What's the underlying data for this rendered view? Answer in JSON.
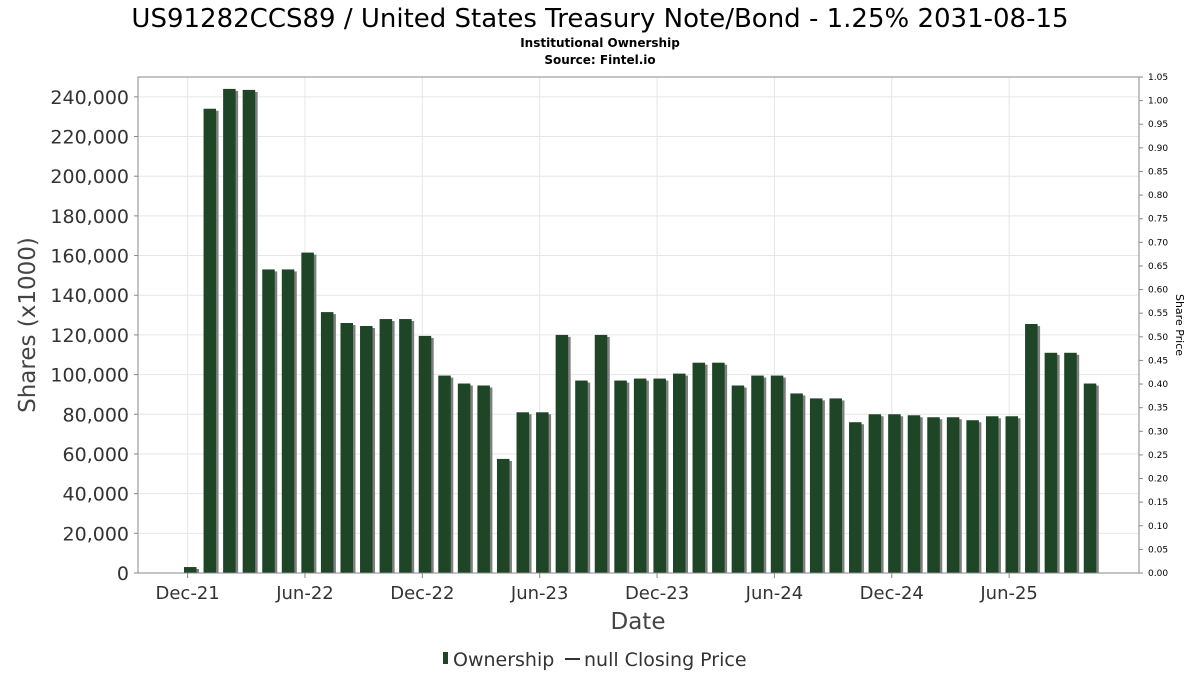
{
  "page": {
    "title": "US91282CCS89 / United States Treasury Note/Bond - 1.25% 2031-08-15",
    "subtitle1": "Institutional Ownership",
    "subtitle2": "Source: Fintel.io"
  },
  "colors": {
    "bar": "#1d4526",
    "bar_shadow": "#7f7f7f",
    "grid": "#e6e6e6",
    "plot_border": "#888888"
  },
  "chart_data": {
    "type": "bar",
    "xlabel": "Date",
    "ylabel": "Shares (x1000)",
    "y2label": "Share Price",
    "ylim": [
      0,
      250000
    ],
    "y2lim": [
      0,
      1.05
    ],
    "grid": true,
    "legend_position": "bottom",
    "x_tick_labels": [
      "Dec-21",
      "Jun-22",
      "Dec-22",
      "Jun-23",
      "Dec-23",
      "Jun-24",
      "Dec-24",
      "Jun-25"
    ],
    "y_tick_labels": [
      "0",
      "20,000",
      "40,000",
      "60,000",
      "80,000",
      "100,000",
      "120,000",
      "140,000",
      "160,000",
      "180,000",
      "200,000",
      "220,000",
      "240,000"
    ],
    "y2_tick_labels": [
      "0.00",
      "0.05",
      "0.10",
      "0.15",
      "0.20",
      "0.25",
      "0.30",
      "0.35",
      "0.40",
      "0.45",
      "0.50",
      "0.55",
      "0.60",
      "0.65",
      "0.70",
      "0.75",
      "0.80",
      "0.85",
      "0.90",
      "0.95",
      "1.00",
      "1.05"
    ],
    "series": [
      {
        "name": "Ownership",
        "values": [
          3000,
          234000,
          244000,
          243500,
          153000,
          153000,
          161500,
          131500,
          126000,
          124500,
          128000,
          128000,
          119500,
          99500,
          95500,
          94500,
          57500,
          81000,
          81000,
          120000,
          97000,
          120000,
          97000,
          98000,
          98000,
          100500,
          106000,
          106000,
          94500,
          99500,
          99500,
          90500,
          88000,
          88000,
          76000,
          80000,
          80000,
          79500,
          78500,
          78500,
          77000,
          79000,
          79000,
          125500,
          111000,
          111000,
          95500
        ]
      },
      {
        "name": "null Closing Price",
        "values": []
      }
    ]
  },
  "legend": {
    "items": [
      {
        "label": "Ownership"
      },
      {
        "label": "null Closing Price"
      }
    ]
  }
}
